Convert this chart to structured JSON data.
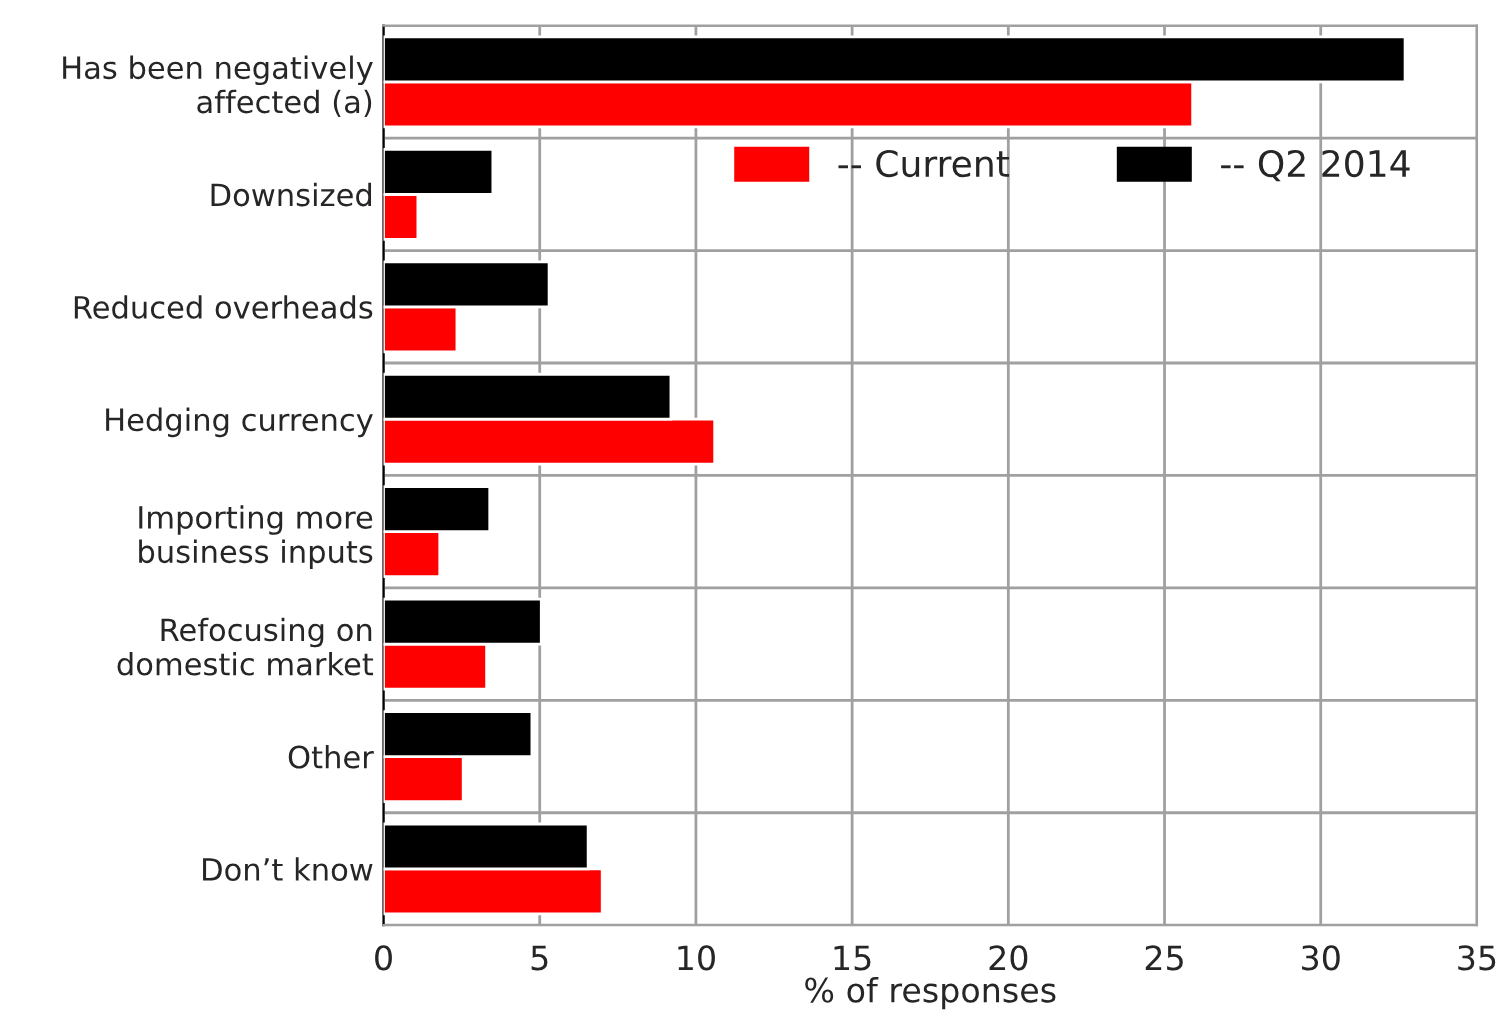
{
  "chart_data": {
    "type": "bar",
    "orientation": "horizontal",
    "xlabel": "% of responses",
    "categories": [
      "Has been negatively\naffected (a)",
      "Downsized",
      "Reduced overheads",
      "Hedging currency",
      "Importing more\nbusiness inputs",
      "Refocusing on\ndomestic market",
      "Other",
      "Don’t know"
    ],
    "series": [
      {
        "name": "-- Current",
        "color": "#ff0000",
        "values": [
          25.9,
          1.1,
          2.35,
          10.6,
          1.8,
          3.3,
          2.55,
          7.0
        ]
      },
      {
        "name": "-- Q2 2014",
        "color": "#000000",
        "values": [
          32.7,
          3.5,
          5.3,
          9.2,
          3.4,
          5.05,
          4.75,
          6.55
        ]
      }
    ],
    "xlim": [
      0,
      35
    ],
    "xticks": [
      0,
      5,
      10,
      15,
      20,
      25,
      30,
      35
    ],
    "grid": true,
    "legend": "top right"
  }
}
